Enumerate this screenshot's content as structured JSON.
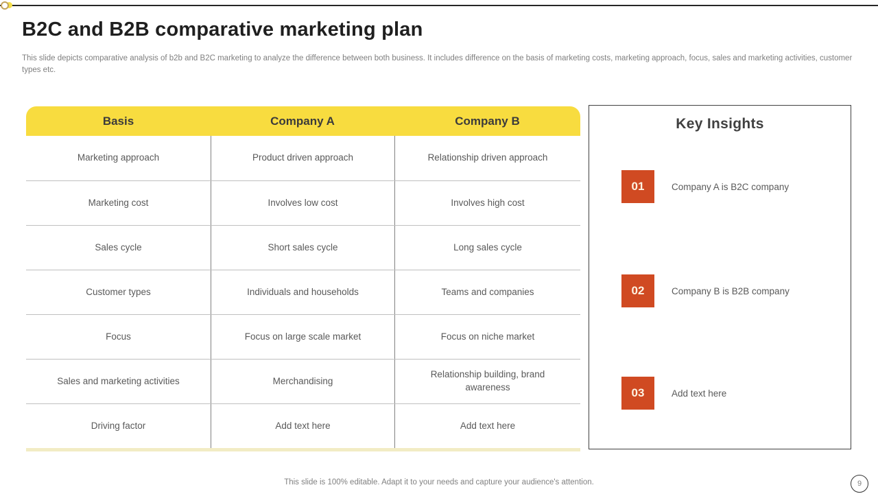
{
  "slide": {
    "title": "B2C and B2B comparative marketing plan",
    "description": "This slide depicts comparative analysis of b2b and B2C marketing to analyze the difference between both business. It includes difference on the basis of marketing costs, marketing approach, focus, sales and marketing activities, customer types etc.",
    "footer_note": "This slide is 100% editable. Adapt it to your needs and capture your audience's attention.",
    "page_number": "9"
  },
  "colors": {
    "header_yellow": "#F8DC3F",
    "pale_yellow_strip": "#F2ECC4",
    "accent_orange": "#D04A22",
    "title_dark": "#1F1F1F",
    "body_gray": "#595959",
    "panel_border": "#3F3F3F"
  },
  "table": {
    "headers": [
      "Basis",
      "Company A",
      "Company B"
    ],
    "rows": [
      {
        "cells": [
          "Marketing approach",
          "Product driven approach",
          "Relationship driven approach"
        ]
      },
      {
        "cells": [
          "Marketing cost",
          "Involves low cost",
          "Involves high cost"
        ]
      },
      {
        "cells": [
          "Sales cycle",
          "Short sales cycle",
          "Long sales cycle"
        ]
      },
      {
        "cells": [
          "Customer types",
          "Individuals and households",
          "Teams and companies"
        ]
      },
      {
        "cells": [
          "Focus",
          "Focus on large scale market",
          "Focus on niche market"
        ]
      },
      {
        "cells": [
          "Sales and marketing activities",
          "Merchandising",
          "Relationship building, brand awareness"
        ]
      },
      {
        "cells": [
          "Driving factor",
          "Add text here",
          "Add text here"
        ]
      }
    ]
  },
  "key_insights": {
    "title": "Key Insights",
    "items": [
      {
        "number": "01",
        "text": "Company A is B2C company"
      },
      {
        "number": "02",
        "text": "Company B is B2B company"
      },
      {
        "number": "03",
        "text": "Add text here"
      }
    ]
  }
}
